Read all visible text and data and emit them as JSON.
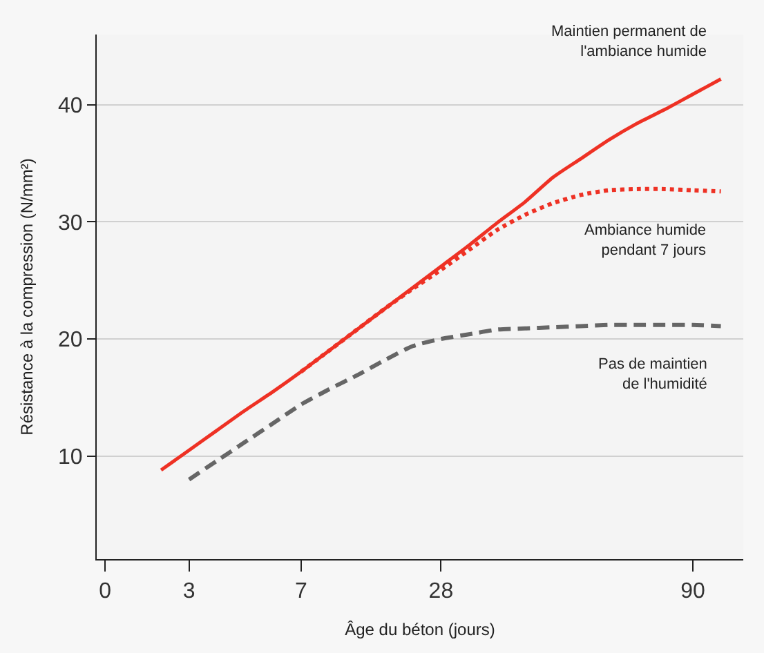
{
  "chart_data": {
    "type": "line",
    "xlabel": "Âge du béton (jours)",
    "ylabel": "Résistance à la compression (N/mm²)",
    "categories": [
      "0",
      null,
      null,
      "3",
      null,
      null,
      null,
      "7",
      null,
      null,
      null,
      null,
      "28",
      null,
      null,
      null,
      null,
      null,
      null,
      null,
      null,
      "90",
      null
    ],
    "ylim": [
      1.2,
      46
    ],
    "yticks": [
      10,
      20,
      30,
      40
    ],
    "grid": "y",
    "legend": false,
    "marker": "none",
    "series": [
      {
        "name": "Maintien permanent de\nl'ambiance humide",
        "color": "#ee3124",
        "line_style": "solid",
        "values": [
          null,
          null,
          8.8,
          10.5,
          12.2,
          13.9,
          15.5,
          17.2,
          19.0,
          20.8,
          22.6,
          24.4,
          26.2,
          28.0,
          29.9,
          31.7,
          33.8,
          35.4,
          37.0,
          38.4,
          39.6,
          40.9,
          42.2
        ]
      },
      {
        "name": "Ambiance humide\npendant 7 jours",
        "color": "#ee3124",
        "line_style": "dotted",
        "values": [
          null,
          null,
          null,
          null,
          null,
          null,
          null,
          17.2,
          19.0,
          20.8,
          22.6,
          24.3,
          25.9,
          27.6,
          29.3,
          30.6,
          31.6,
          32.3,
          32.7,
          32.8,
          32.8,
          32.7,
          32.6
        ]
      },
      {
        "name": "Pas de maintien\nde l'humidité",
        "color": "#666666",
        "line_style": "dashed",
        "values": [
          null,
          null,
          null,
          8.0,
          9.6,
          11.2,
          12.8,
          14.4,
          15.7,
          16.9,
          18.2,
          19.4,
          20.0,
          20.4,
          20.8,
          20.9,
          21.0,
          21.1,
          21.2,
          21.2,
          21.2,
          21.2,
          21.1
        ]
      }
    ]
  }
}
